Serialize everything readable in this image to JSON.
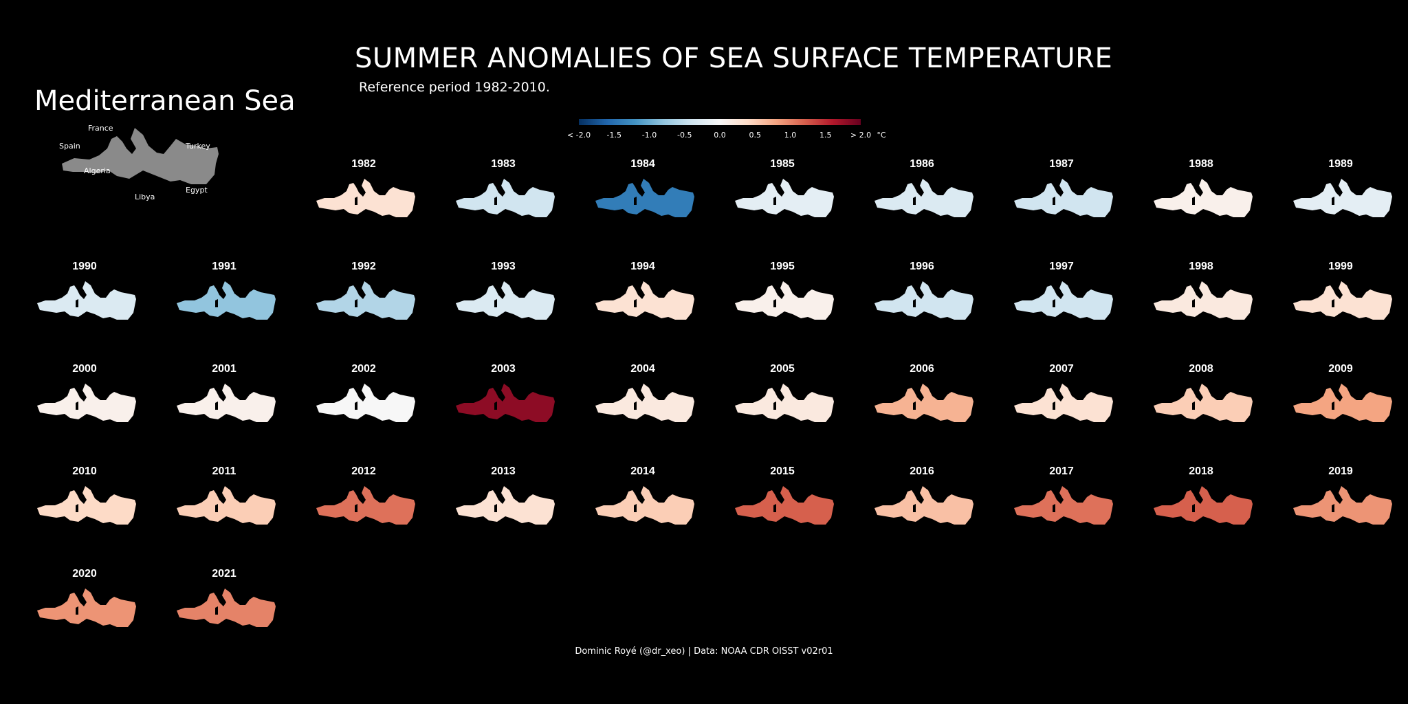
{
  "title": "SUMMER ANOMALIES OF SEA SURFACE TEMPERATURE",
  "subtitle": "Reference period 1982-2010.",
  "region_title": "Mediterranean Sea",
  "inset_labels": {
    "france": "France",
    "spain": "Spain",
    "turkey": "Turkey",
    "algeria": "Algeria",
    "libya": "Libya",
    "egypt": "Egypt"
  },
  "legend": {
    "ticks": [
      "< -2.0",
      "-1.5",
      "-1.0",
      "-0.5",
      "0.0",
      "0.5",
      "1.0",
      "1.5",
      "> 2.0"
    ],
    "unit": "°C",
    "colors": [
      "#053061",
      "#2166ac",
      "#4393c3",
      "#92c5de",
      "#d1e5f0",
      "#f7f7f7",
      "#fddbc7",
      "#f4a582",
      "#d6604d",
      "#b2182b",
      "#67001f"
    ]
  },
  "years": [
    {
      "year": "1982",
      "anomaly": 0.3
    },
    {
      "year": "1983",
      "anomaly": -0.4
    },
    {
      "year": "1984",
      "anomaly": -1.4
    },
    {
      "year": "1985",
      "anomaly": -0.2
    },
    {
      "year": "1986",
      "anomaly": -0.3
    },
    {
      "year": "1987",
      "anomaly": -0.4
    },
    {
      "year": "1988",
      "anomaly": 0.1
    },
    {
      "year": "1989",
      "anomaly": -0.2
    },
    {
      "year": "1990",
      "anomaly": -0.3
    },
    {
      "year": "1991",
      "anomaly": -0.8
    },
    {
      "year": "1992",
      "anomaly": -0.6
    },
    {
      "year": "1993",
      "anomaly": -0.3
    },
    {
      "year": "1994",
      "anomaly": 0.3
    },
    {
      "year": "1995",
      "anomaly": 0.1
    },
    {
      "year": "1996",
      "anomaly": -0.4
    },
    {
      "year": "1997",
      "anomaly": -0.4
    },
    {
      "year": "1998",
      "anomaly": 0.2
    },
    {
      "year": "1999",
      "anomaly": 0.3
    },
    {
      "year": "2000",
      "anomaly": 0.1
    },
    {
      "year": "2001",
      "anomaly": 0.1
    },
    {
      "year": "2002",
      "anomaly": 0.0
    },
    {
      "year": "2003",
      "anomaly": 1.8
    },
    {
      "year": "2004",
      "anomaly": 0.2
    },
    {
      "year": "2005",
      "anomaly": 0.2
    },
    {
      "year": "2006",
      "anomaly": 0.7
    },
    {
      "year": "2007",
      "anomaly": 0.3
    },
    {
      "year": "2008",
      "anomaly": 0.5
    },
    {
      "year": "2009",
      "anomaly": 0.8
    },
    {
      "year": "2010",
      "anomaly": 0.4
    },
    {
      "year": "2011",
      "anomaly": 0.5
    },
    {
      "year": "2012",
      "anomaly": 1.1
    },
    {
      "year": "2013",
      "anomaly": 0.3
    },
    {
      "year": "2014",
      "anomaly": 0.5
    },
    {
      "year": "2015",
      "anomaly": 1.2
    },
    {
      "year": "2016",
      "anomaly": 0.6
    },
    {
      "year": "2017",
      "anomaly": 1.1
    },
    {
      "year": "2018",
      "anomaly": 1.2
    },
    {
      "year": "2019",
      "anomaly": 0.9
    },
    {
      "year": "2020",
      "anomaly": 0.9
    },
    {
      "year": "2021",
      "anomaly": 1.0
    }
  ],
  "caption": "Dominic Royé (@dr_xeo) | Data: NOAA CDR OISST v02r01"
}
